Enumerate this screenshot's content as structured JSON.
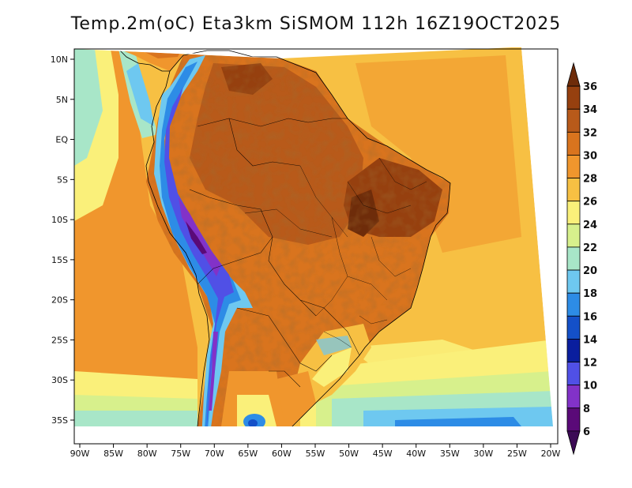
{
  "title": "Temp.2m(oC) Eta3km SiSMOM 112h 16Z19OCT2025",
  "map": {
    "lon_range": [
      -90,
      -20
    ],
    "lat_range": [
      -38,
      11
    ],
    "x_ticks": [
      "90W",
      "85W",
      "80W",
      "75W",
      "70W",
      "65W",
      "60W",
      "55W",
      "50W",
      "45W",
      "40W",
      "35W",
      "30W",
      "25W",
      "20W"
    ],
    "y_ticks": [
      "10N",
      "5N",
      "EQ",
      "5S",
      "10S",
      "15S",
      "20S",
      "25S",
      "30S",
      "35S"
    ]
  },
  "colorbar": {
    "levels": [
      "36",
      "34",
      "32",
      "30",
      "28",
      "26",
      "24",
      "22",
      "20",
      "18",
      "16",
      "14",
      "12",
      "10",
      "8",
      "6"
    ],
    "colors": [
      "#6e2c0a",
      "#96400f",
      "#b85a1a",
      "#d9741e",
      "#f0962d",
      "#f7c043",
      "#faf07a",
      "#d7f08c",
      "#a8e6c8",
      "#6ec8f0",
      "#2d8ce6",
      "#1450c8",
      "#0a1e9e",
      "#5050e6",
      "#8232c8",
      "#5a0a78",
      "#3c0a55"
    ]
  },
  "features": {
    "coastline": "coastline",
    "country_borders": "country-borders",
    "state_borders": "state-borders"
  }
}
